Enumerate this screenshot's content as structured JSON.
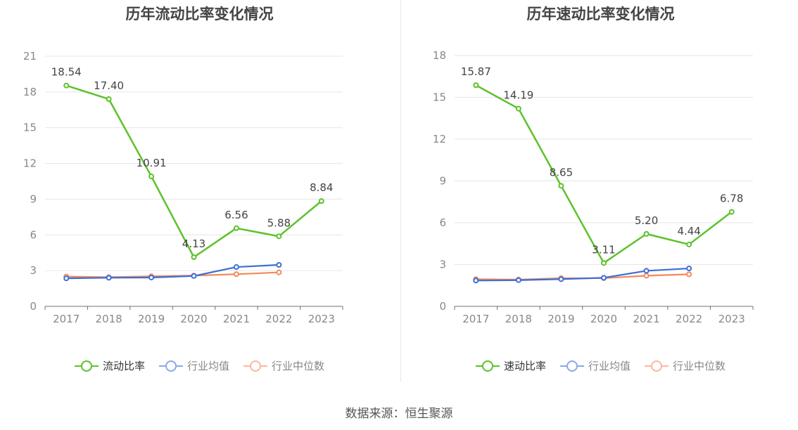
{
  "source": "数据来源：恒生聚源",
  "chart_data": [
    {
      "type": "line",
      "title": "历年流动比率变化情况",
      "categories": [
        "2017",
        "2018",
        "2019",
        "2020",
        "2021",
        "2022",
        "2023"
      ],
      "ylim": [
        0,
        21
      ],
      "yticks": [
        0,
        3,
        6,
        9,
        12,
        15,
        18,
        21
      ],
      "grid": true,
      "legend_position": "bottom",
      "series": [
        {
          "name": "流动比率",
          "color": "#5cc22a",
          "values": [
            18.54,
            17.4,
            10.91,
            4.13,
            6.56,
            5.88,
            8.84
          ],
          "labels": [
            "18.54",
            "17.40",
            "10.91",
            "4.13",
            "6.56",
            "5.88",
            "8.84"
          ]
        },
        {
          "name": "行业均值",
          "color": "#3b6fd6",
          "values": [
            2.35,
            2.4,
            2.42,
            2.55,
            3.3,
            3.48,
            null
          ]
        },
        {
          "name": "行业中位数",
          "color": "#f08a5d",
          "values": [
            2.5,
            2.45,
            2.52,
            2.58,
            2.7,
            2.85,
            null
          ]
        }
      ]
    },
    {
      "type": "line",
      "title": "历年速动比率变化情况",
      "categories": [
        "2017",
        "2018",
        "2019",
        "2020",
        "2021",
        "2022",
        "2023"
      ],
      "ylim": [
        0,
        18
      ],
      "yticks": [
        0,
        3,
        6,
        9,
        12,
        15,
        18
      ],
      "grid": true,
      "legend_position": "bottom",
      "series": [
        {
          "name": "速动比率",
          "color": "#5cc22a",
          "values": [
            15.87,
            14.19,
            8.65,
            3.11,
            5.2,
            4.44,
            6.78
          ],
          "labels": [
            "15.87",
            "14.19",
            "8.65",
            "3.11",
            "5.20",
            "4.44",
            "6.78"
          ]
        },
        {
          "name": "行业均值",
          "color": "#3b6fd6",
          "values": [
            1.85,
            1.88,
            1.95,
            2.05,
            2.55,
            2.72,
            null
          ]
        },
        {
          "name": "行业中位数",
          "color": "#f08a5d",
          "values": [
            1.95,
            1.92,
            2.02,
            2.02,
            2.2,
            2.3,
            null
          ]
        }
      ]
    }
  ]
}
